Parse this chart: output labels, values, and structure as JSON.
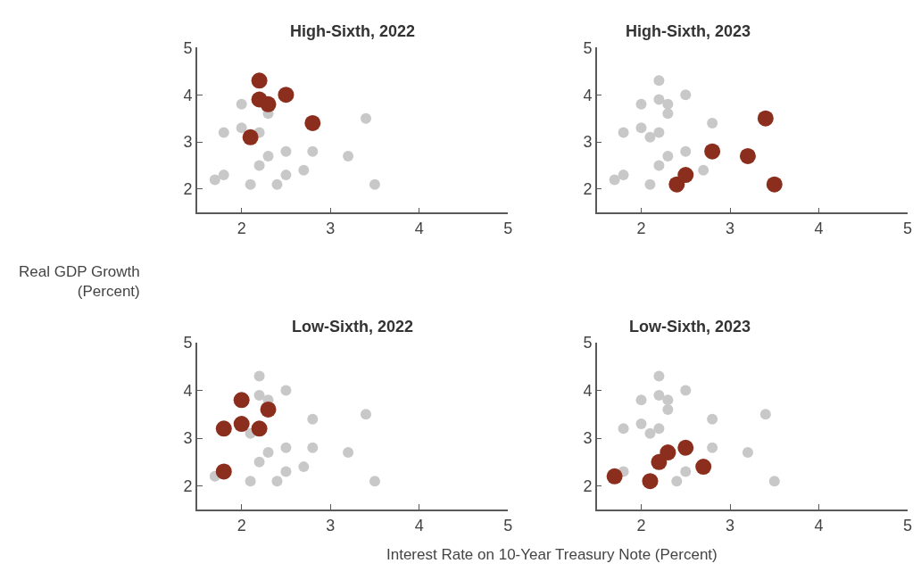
{
  "chart_data": [
    {
      "type": "scatter",
      "title": "High-Sixth, 2022",
      "ylabel": "Real GDP Growth\n(Percent)",
      "xlim": [
        1.5,
        5
      ],
      "xticks": [
        2,
        3,
        4,
        5
      ],
      "ylim": [
        1.5,
        5
      ],
      "yticks": [
        2,
        3,
        4,
        5
      ],
      "marker": "circle",
      "series": [
        {
          "color": "#c8c8c8",
          "x": [
            1.7,
            1.8,
            1.8,
            2.0,
            2.0,
            2.1,
            2.2,
            2.2,
            2.3,
            2.3,
            2.4,
            2.5,
            2.5,
            2.7,
            2.8,
            3.2,
            3.4,
            3.5
          ],
          "values": [
            2.2,
            2.3,
            3.2,
            3.8,
            3.3,
            2.1,
            3.2,
            2.5,
            3.6,
            2.7,
            2.1,
            2.8,
            2.3,
            2.4,
            2.8,
            2.7,
            3.5,
            2.1
          ]
        },
        {
          "color": "#8b2e1e",
          "x": [
            2.2,
            2.2,
            2.3,
            2.5,
            2.8,
            2.1
          ],
          "values": [
            4.3,
            3.9,
            3.8,
            4.0,
            3.4,
            3.1
          ]
        }
      ]
    },
    {
      "type": "scatter",
      "title": "High-Sixth, 2023",
      "xlim": [
        1.5,
        5
      ],
      "xticks": [
        2,
        3,
        4,
        5
      ],
      "ylim": [
        1.5,
        5
      ],
      "yticks": [
        2,
        3,
        4,
        5
      ],
      "marker": "circle",
      "series": [
        {
          "color": "#c8c8c8",
          "x": [
            1.7,
            1.8,
            1.8,
            2.0,
            2.0,
            2.1,
            2.1,
            2.2,
            2.2,
            2.2,
            2.2,
            2.3,
            2.3,
            2.3,
            2.5,
            2.5,
            2.7,
            2.8
          ],
          "values": [
            2.2,
            2.3,
            3.2,
            3.8,
            3.3,
            3.1,
            2.1,
            4.3,
            3.9,
            3.2,
            2.5,
            3.8,
            3.6,
            2.7,
            4.0,
            2.8,
            2.4,
            3.4
          ]
        },
        {
          "color": "#8b2e1e",
          "x": [
            2.4,
            2.5,
            2.8,
            3.2,
            3.4,
            3.5
          ],
          "values": [
            2.1,
            2.3,
            2.8,
            2.7,
            3.5,
            2.1
          ]
        }
      ]
    },
    {
      "type": "scatter",
      "title": "Low-Sixth, 2022",
      "xlim": [
        1.5,
        5
      ],
      "xticks": [
        2,
        3,
        4,
        5
      ],
      "ylim": [
        1.5,
        5
      ],
      "yticks": [
        2,
        3,
        4,
        5
      ],
      "marker": "circle",
      "series": [
        {
          "color": "#c8c8c8",
          "x": [
            1.7,
            2.1,
            2.1,
            2.2,
            2.2,
            2.2,
            2.3,
            2.3,
            2.4,
            2.5,
            2.5,
            2.5,
            2.7,
            2.8,
            2.8,
            3.2,
            3.4,
            3.5
          ],
          "values": [
            2.2,
            3.1,
            2.1,
            4.3,
            3.9,
            2.5,
            3.8,
            2.7,
            2.1,
            4.0,
            2.8,
            2.3,
            2.4,
            3.4,
            2.8,
            2.7,
            3.5,
            2.1
          ]
        },
        {
          "color": "#8b2e1e",
          "x": [
            1.8,
            1.8,
            2.0,
            2.0,
            2.2,
            2.3
          ],
          "values": [
            3.2,
            2.3,
            3.8,
            3.3,
            3.2,
            3.6
          ]
        }
      ]
    },
    {
      "type": "scatter",
      "title": "Low-Sixth, 2023",
      "xlabel": "Interest Rate on 10-Year Treasury Note (Percent)",
      "xlim": [
        1.5,
        5
      ],
      "xticks": [
        2,
        3,
        4,
        5
      ],
      "ylim": [
        1.5,
        5
      ],
      "yticks": [
        2,
        3,
        4,
        5
      ],
      "marker": "circle",
      "series": [
        {
          "color": "#c8c8c8",
          "x": [
            1.8,
            1.8,
            2.0,
            2.0,
            2.1,
            2.2,
            2.2,
            2.2,
            2.3,
            2.3,
            2.4,
            2.5,
            2.5,
            2.8,
            2.8,
            3.2,
            3.4,
            3.5
          ],
          "values": [
            2.3,
            3.2,
            3.8,
            3.3,
            3.1,
            4.3,
            3.9,
            3.2,
            3.8,
            3.6,
            2.1,
            4.0,
            2.3,
            3.4,
            2.8,
            2.7,
            3.5,
            2.1
          ]
        },
        {
          "color": "#8b2e1e",
          "x": [
            1.7,
            2.1,
            2.2,
            2.3,
            2.5,
            2.7
          ],
          "values": [
            2.2,
            2.1,
            2.5,
            2.7,
            2.8,
            2.4
          ]
        }
      ]
    }
  ]
}
